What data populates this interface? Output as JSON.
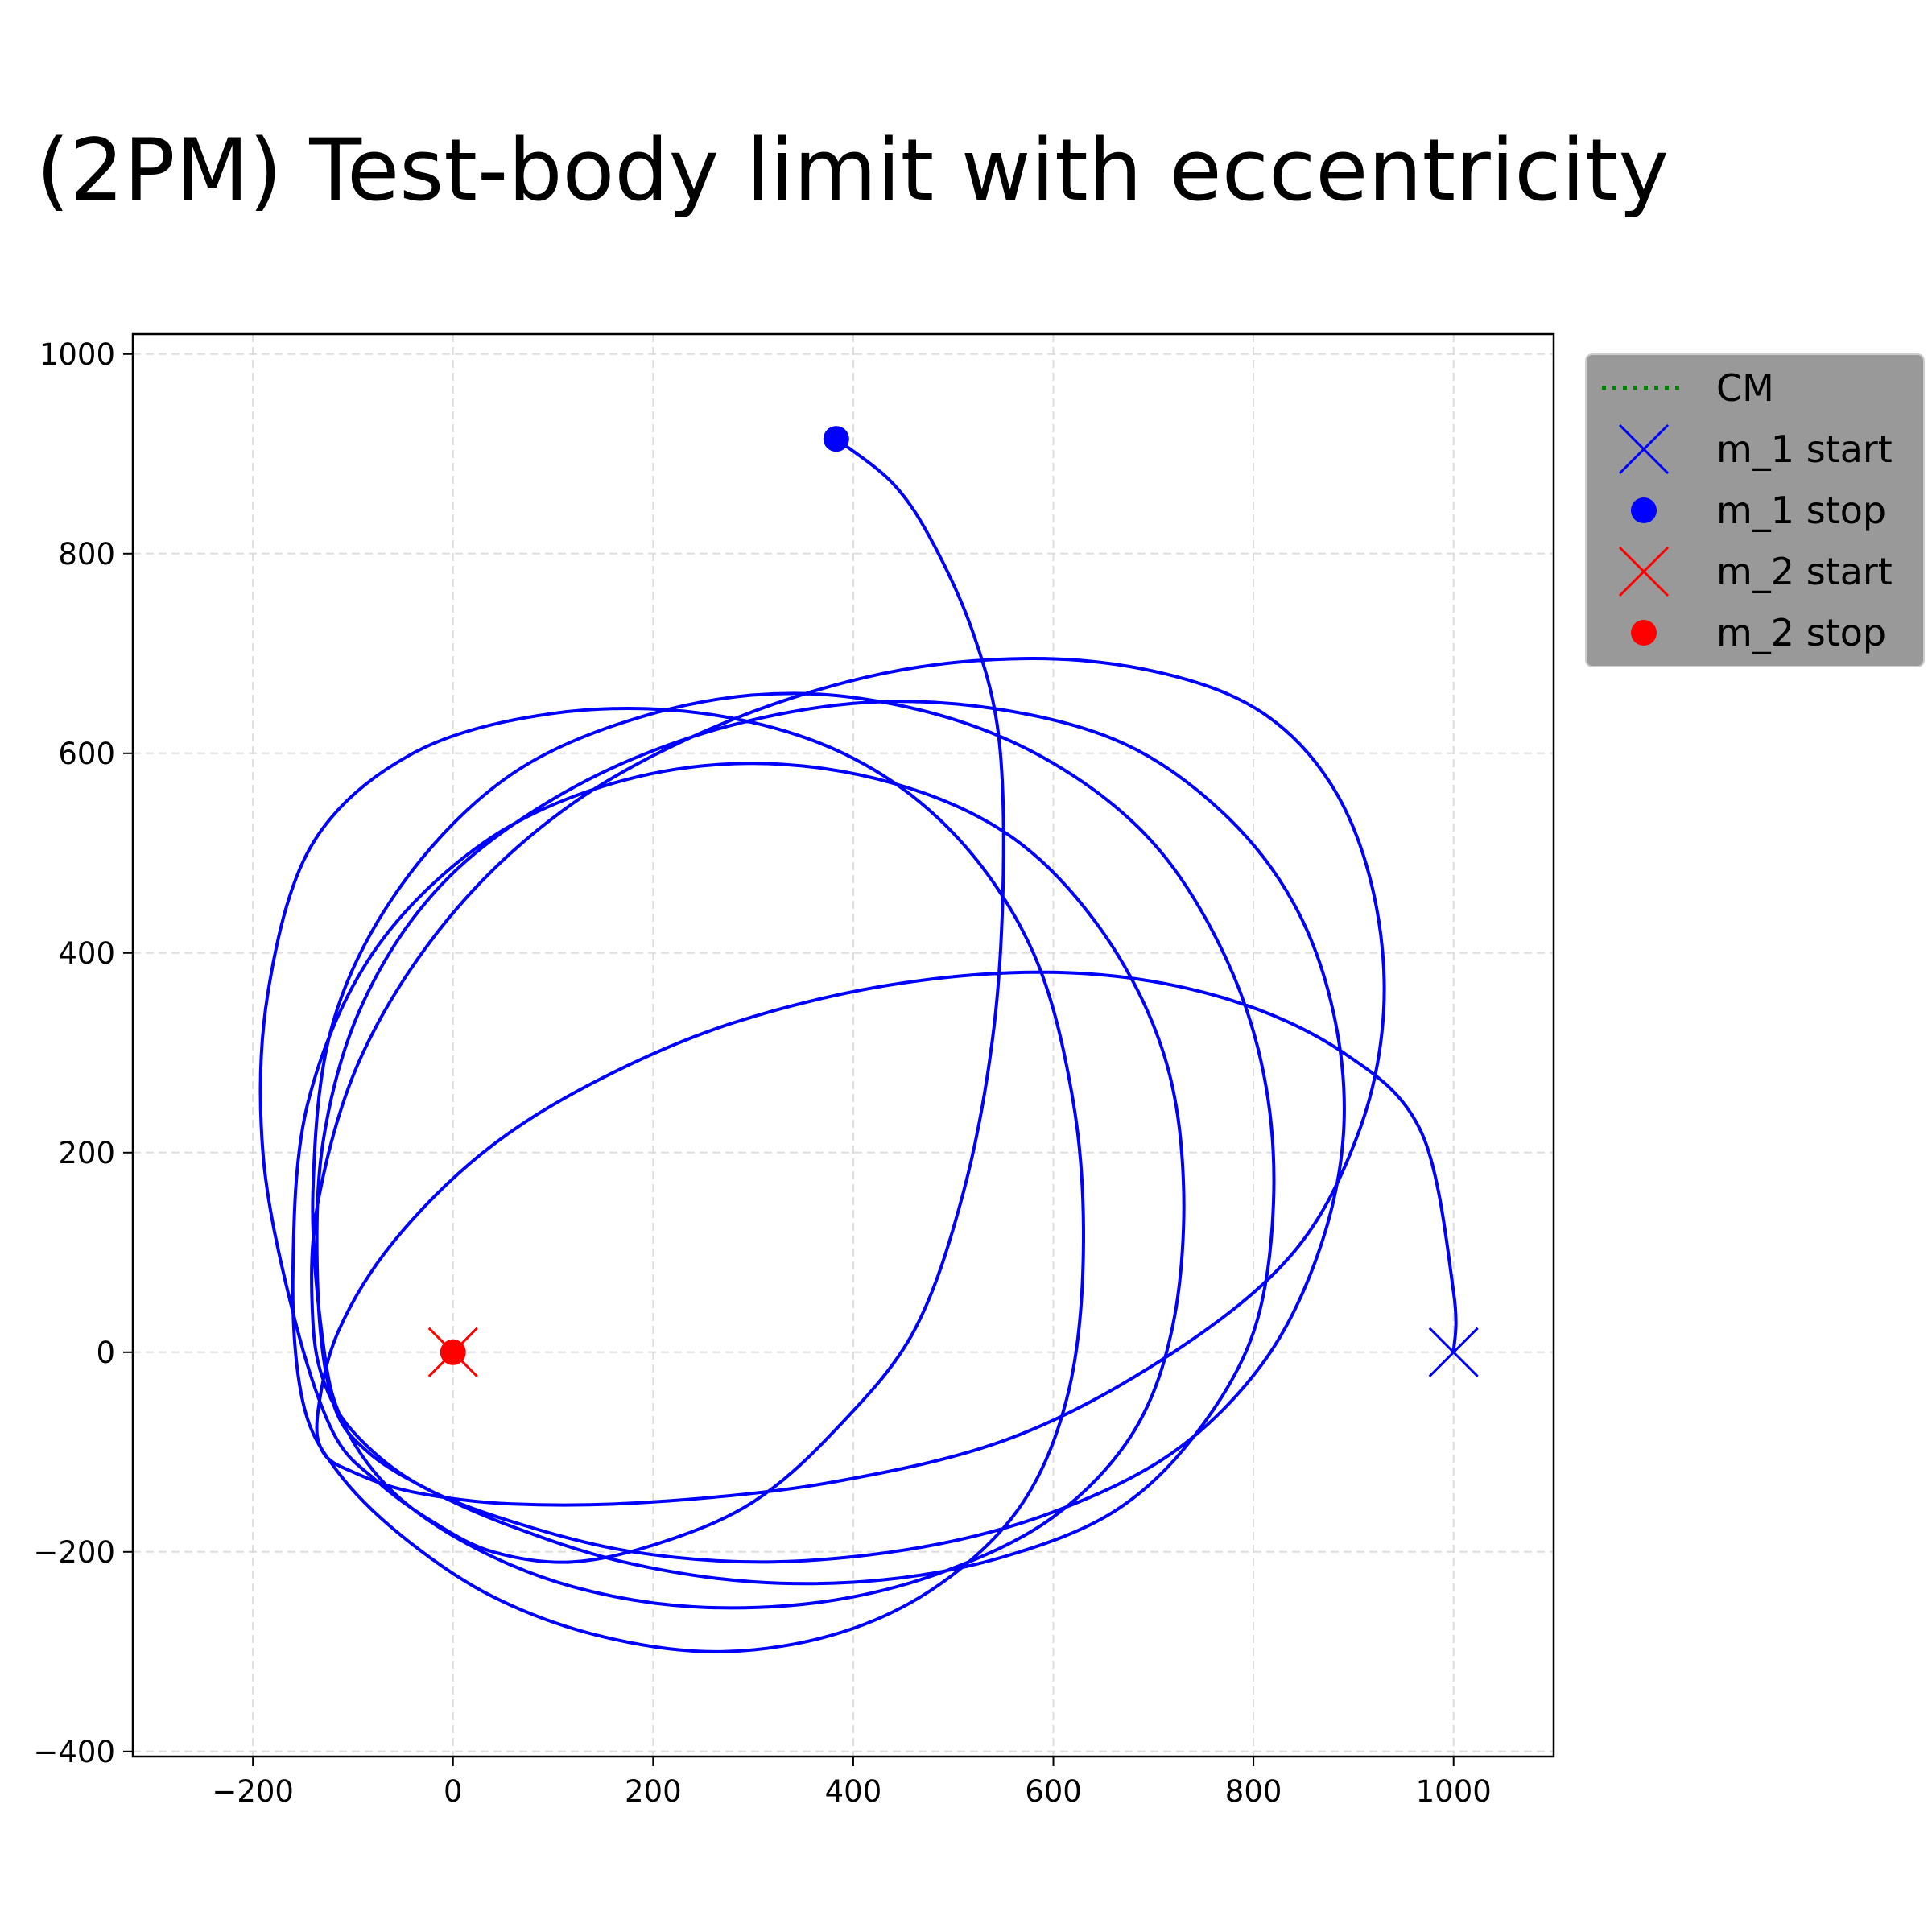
{
  "chart_data": {
    "type": "line",
    "title": "(2PM) Test-body limit with eccentricity",
    "xlabel": "",
    "ylabel": "",
    "xlim": [
      -320,
      1100
    ],
    "ylim": [
      -405,
      1020
    ],
    "x_ticks": [
      -200,
      0,
      200,
      400,
      600,
      800,
      1000
    ],
    "y_ticks": [
      -400,
      -200,
      0,
      200,
      400,
      600,
      800,
      1000
    ],
    "x_tick_labels": [
      "−200",
      "0",
      "200",
      "400",
      "600",
      "800",
      "1000"
    ],
    "y_tick_labels": [
      "−400",
      "−200",
      "0",
      "200",
      "400",
      "600",
      "800",
      "1000"
    ],
    "grid": true,
    "legend_position": "outside upper-right",
    "colors": {
      "m_1": "#0000ff",
      "m_2": "#ff0000",
      "CM": "#008000",
      "legend_bg": "#999999",
      "grid": "#dddddd"
    },
    "series": [
      {
        "name": "m_1 trajectory",
        "color": "#0000ff",
        "x": [
          1000,
          1000,
          968,
          890,
          770,
          620,
          450,
          280,
          140,
          30,
          -60,
          -115,
          -135,
          -130,
          -100,
          -40,
          60,
          200,
          380,
          560,
          720,
          840,
          905,
          930,
          920,
          880,
          810,
          710,
          580,
          430,
          270,
          120,
          0,
          -90,
          -135,
          -140,
          -125,
          -90,
          -30,
          60,
          180,
          320,
          470,
          600,
          720,
          810,
          865,
          890,
          880,
          840,
          770,
          670,
          540,
          400,
          250,
          110,
          -10,
          -90,
          -130,
          -135,
          -120,
          -85,
          -20,
          60,
          170,
          300,
          430,
          550,
          660,
          740,
          800,
          820,
          810,
          770,
          700,
          600,
          480,
          340,
          200,
          60,
          -50,
          -120,
          -140,
          -130,
          -110,
          -60,
          20,
          120,
          240,
          370,
          490,
          600,
          680,
          720,
          730,
          710,
          650,
          560,
          440,
          300,
          160,
          30,
          -80,
          -145,
          -160,
          -150,
          -115,
          -50,
          40,
          150,
          270,
          390,
          490,
          570,
          615,
          630,
          620,
          580,
          500,
          390,
          250,
          100,
          -40,
          -140,
          -185,
          -190,
          -160,
          -120,
          -75,
          -20,
          40,
          120,
          210,
          300,
          380,
          460,
          510,
          540,
          550,
          545,
          520,
          480,
          440,
          383
        ],
        "y": [
          0,
          60,
          220,
          300,
          355,
          380,
          370,
          330,
          270,
          200,
          110,
          20,
          -60,
          -100,
          -120,
          -140,
          -152,
          -150,
          -130,
          -85,
          0,
          100,
          220,
          340,
          460,
          565,
          640,
          680,
          695,
          680,
          630,
          550,
          440,
          300,
          150,
          30,
          -40,
          -90,
          -135,
          -170,
          -200,
          -210,
          -195,
          -160,
          -100,
          -10,
          100,
          220,
          340,
          450,
          540,
          610,
          645,
          650,
          620,
          560,
          470,
          350,
          210,
          60,
          -50,
          -100,
          -140,
          -175,
          -210,
          -230,
          -228,
          -205,
          -160,
          -85,
          20,
          150,
          280,
          400,
          510,
          590,
          640,
          660,
          640,
          580,
          470,
          330,
          160,
          10,
          -70,
          -140,
          -195,
          -235,
          -255,
          -250,
          -220,
          -165,
          -80,
          30,
          170,
          300,
          420,
          515,
          570,
          590,
          570,
          510,
          400,
          250,
          80,
          -50,
          -120,
          -185,
          -245,
          -285,
          -300,
          -280,
          -230,
          -150,
          -40,
          100,
          250,
          400,
          520,
          600,
          640,
          640,
          600,
          510,
          360,
          200,
          40,
          -80,
          -130,
          -170,
          -200,
          -210,
          -190,
          -150,
          -80,
          20,
          160,
          320,
          480,
          620,
          720,
          810,
          870,
          915
        ]
      }
    ],
    "markers": [
      {
        "name": "m_1 start",
        "x": 1000,
        "y": 0,
        "marker": "x",
        "color": "#0000ff"
      },
      {
        "name": "m_1 stop",
        "x": 383,
        "y": 915,
        "marker": "o",
        "color": "#0000ff"
      },
      {
        "name": "m_2 start",
        "x": 0,
        "y": 0,
        "marker": "x",
        "color": "#ff0000"
      },
      {
        "name": "m_2 stop",
        "x": 0,
        "y": 0,
        "marker": "o",
        "color": "#ff0000"
      }
    ],
    "legend": [
      {
        "label": "CM",
        "type": "dotted-line",
        "color": "#008000"
      },
      {
        "label": "m_1 start",
        "type": "x",
        "color": "#0000ff"
      },
      {
        "label": "m_1 stop",
        "type": "o",
        "color": "#0000ff"
      },
      {
        "label": "m_2 start",
        "type": "x",
        "color": "#ff0000"
      },
      {
        "label": "m_2 stop",
        "type": "o",
        "color": "#ff0000"
      }
    ]
  }
}
